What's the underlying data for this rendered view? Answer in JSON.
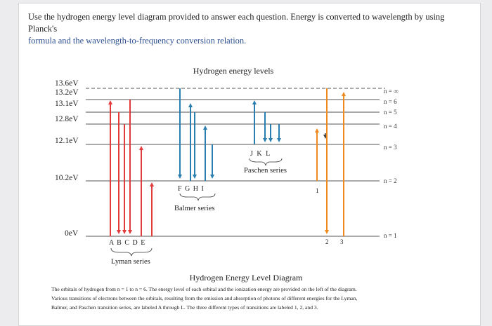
{
  "intro": {
    "line1": "Use the hydrogen energy level diagram provided to answer each question. Energy is converted to wavelength by using Planck's",
    "line2": "formula and the wavelength-to-frequency conversion relation."
  },
  "diagram": {
    "title": "Hydrogen energy levels",
    "energy_labels": [
      "13.6eV",
      "13.2eV",
      "13.1eV",
      "12.8eV",
      "12.1eV",
      "10.2eV",
      "0eV"
    ],
    "level_labels": [
      "n = ∞",
      "n = 6",
      "n = 5",
      "n = 4",
      "n = 3",
      "n = 2",
      "n = 1"
    ],
    "lyman_letters": "A B C D E",
    "lyman_label": "Lyman series",
    "balmer_letters": "F G H I",
    "balmer_label": "Balmer series",
    "paschen_letters": "J K L",
    "paschen_label": "Paschen series",
    "transition_types": [
      "1",
      "2",
      "3"
    ],
    "colors": {
      "lyman": "#e23b3b",
      "balmer_paschen": "#2a7fb0",
      "type_transitions": "#f08a1f",
      "level_lines": "#555555"
    }
  },
  "caption": {
    "title": "Hydrogen Energy Level Diagram",
    "line1": "The orbitals of hydrogen from n = 1 to n = 6. The energy level of each orbital and the ionization energy are provided on the left of the diagram.",
    "line2": "Various transitions of electrons between the orbitals, resulting from the emission and absorption of photons of different energies for the Lyman,",
    "line3": "Balmer, and Paschen transition series, are labeled A through L. The three different types of transitions are labeled 1, 2, and 3."
  }
}
